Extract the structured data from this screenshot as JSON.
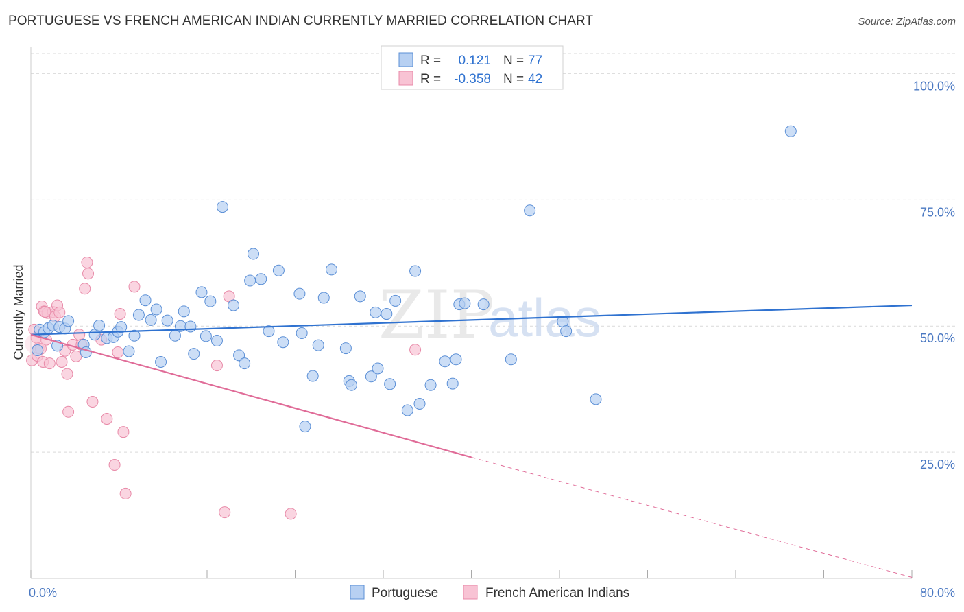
{
  "title": "PORTUGUESE VS FRENCH AMERICAN INDIAN CURRENTLY MARRIED CORRELATION CHART",
  "source": "Source: ZipAtlas.com",
  "colors": {
    "blue": "#5b8fd6",
    "blue_fill": "#b7d0f2",
    "blue_line": "#2f72d0",
    "pink": "#e88aa8",
    "pink_fill": "#f8c3d4",
    "pink_line": "#e06c98",
    "label_blue": "#4a78c2",
    "grid": "#d9d9d9"
  },
  "legend_top": [
    {
      "r_label": "R =",
      "r_value": "0.121",
      "n_label": "N =",
      "n_value": "77"
    },
    {
      "r_label": "R =",
      "r_value": "-0.358",
      "n_label": "N =",
      "n_value": "42"
    }
  ],
  "watermark": {
    "zip": "ZIP",
    "atlas": "atlas"
  },
  "chart_data": {
    "type": "scatter",
    "ylabel": "Currently Married",
    "xlim": [
      0,
      80
    ],
    "ylim": [
      0,
      104
    ],
    "x_tick_labels": [
      "0.0%",
      "80.0%"
    ],
    "y_ticks": [
      25,
      50,
      75,
      100
    ],
    "y_tick_labels": [
      "25.0%",
      "50.0%",
      "75.0%",
      "100.0%"
    ],
    "grid": true,
    "legend_position": "bottom-center",
    "series": [
      {
        "name": "Portuguese",
        "trend": {
          "x0": 0,
          "y0": 48.3,
          "x1": 80,
          "y1": 54.1
        },
        "points": [
          [
            0.6,
            45.2
          ],
          [
            0.8,
            49.3
          ],
          [
            1.2,
            48.8
          ],
          [
            1.6,
            49.6
          ],
          [
            2.0,
            50.1
          ],
          [
            2.4,
            46.1
          ],
          [
            2.6,
            49.8
          ],
          [
            3.1,
            49.5
          ],
          [
            3.4,
            51.0
          ],
          [
            4.8,
            46.3
          ],
          [
            5.0,
            44.8
          ],
          [
            5.8,
            48.3
          ],
          [
            6.2,
            50.1
          ],
          [
            6.9,
            47.6
          ],
          [
            7.5,
            47.8
          ],
          [
            7.9,
            48.9
          ],
          [
            8.2,
            49.8
          ],
          [
            8.9,
            45.0
          ],
          [
            9.4,
            48.1
          ],
          [
            9.8,
            52.2
          ],
          [
            10.4,
            55.1
          ],
          [
            10.9,
            51.2
          ],
          [
            11.4,
            53.3
          ],
          [
            11.8,
            42.9
          ],
          [
            12.4,
            51.1
          ],
          [
            13.1,
            48.1
          ],
          [
            13.6,
            50.0
          ],
          [
            13.9,
            52.9
          ],
          [
            14.5,
            49.9
          ],
          [
            14.8,
            44.5
          ],
          [
            15.5,
            56.7
          ],
          [
            15.9,
            48.0
          ],
          [
            16.3,
            54.9
          ],
          [
            16.9,
            47.1
          ],
          [
            17.4,
            73.6
          ],
          [
            18.4,
            54.1
          ],
          [
            18.9,
            44.2
          ],
          [
            19.4,
            42.6
          ],
          [
            19.9,
            59.0
          ],
          [
            20.2,
            64.3
          ],
          [
            20.9,
            59.3
          ],
          [
            21.6,
            49.0
          ],
          [
            22.5,
            61.0
          ],
          [
            22.9,
            46.8
          ],
          [
            24.4,
            56.4
          ],
          [
            24.6,
            48.6
          ],
          [
            24.9,
            30.1
          ],
          [
            25.6,
            40.1
          ],
          [
            26.1,
            46.2
          ],
          [
            26.6,
            55.6
          ],
          [
            27.3,
            61.2
          ],
          [
            28.6,
            45.6
          ],
          [
            28.9,
            39.1
          ],
          [
            29.1,
            38.3
          ],
          [
            29.9,
            55.9
          ],
          [
            30.9,
            40.0
          ],
          [
            31.3,
            52.7
          ],
          [
            31.5,
            41.6
          ],
          [
            32.3,
            52.4
          ],
          [
            32.6,
            38.5
          ],
          [
            33.1,
            55.0
          ],
          [
            34.2,
            33.3
          ],
          [
            34.9,
            60.9
          ],
          [
            35.3,
            34.6
          ],
          [
            36.3,
            38.3
          ],
          [
            37.6,
            43.0
          ],
          [
            38.3,
            38.6
          ],
          [
            38.6,
            43.4
          ],
          [
            38.9,
            54.3
          ],
          [
            39.4,
            54.5
          ],
          [
            41.1,
            54.3
          ],
          [
            43.6,
            43.4
          ],
          [
            45.3,
            72.9
          ],
          [
            48.3,
            50.9
          ],
          [
            48.6,
            49.0
          ],
          [
            51.3,
            35.5
          ],
          [
            69.0,
            88.6
          ]
        ]
      },
      {
        "name": "French American Indians",
        "trend": {
          "x0": 0,
          "y0": 48.3,
          "x1": 40,
          "y1": 24.0,
          "dash_x1": 80,
          "dash_y1": 0.2
        },
        "points": [
          [
            0.1,
            43.2
          ],
          [
            0.5,
            47.7
          ],
          [
            0.6,
            44.1
          ],
          [
            0.7,
            45.6
          ],
          [
            1.0,
            53.9
          ],
          [
            1.1,
            42.9
          ],
          [
            1.2,
            52.9
          ],
          [
            1.4,
            47.3
          ],
          [
            1.5,
            52.6
          ],
          [
            1.7,
            42.6
          ],
          [
            2.0,
            52.8
          ],
          [
            2.2,
            51.9
          ],
          [
            2.4,
            54.1
          ],
          [
            2.6,
            52.7
          ],
          [
            2.8,
            42.9
          ],
          [
            3.1,
            45.1
          ],
          [
            3.3,
            40.5
          ],
          [
            3.4,
            33.0
          ],
          [
            3.8,
            46.3
          ],
          [
            4.1,
            44.0
          ],
          [
            4.4,
            48.3
          ],
          [
            4.6,
            46.3
          ],
          [
            4.9,
            57.4
          ],
          [
            5.1,
            62.6
          ],
          [
            5.2,
            60.4
          ],
          [
            5.6,
            35.0
          ],
          [
            6.4,
            47.3
          ],
          [
            6.9,
            31.6
          ],
          [
            7.6,
            22.5
          ],
          [
            7.9,
            44.8
          ],
          [
            8.1,
            52.4
          ],
          [
            8.4,
            29.0
          ],
          [
            8.6,
            16.8
          ],
          [
            9.4,
            57.8
          ],
          [
            16.9,
            42.2
          ],
          [
            17.6,
            13.1
          ],
          [
            18.0,
            55.9
          ],
          [
            23.6,
            12.8
          ],
          [
            34.9,
            45.3
          ],
          [
            0.3,
            49.3
          ],
          [
            0.9,
            45.5
          ],
          [
            1.3,
            52.8
          ]
        ]
      }
    ]
  }
}
